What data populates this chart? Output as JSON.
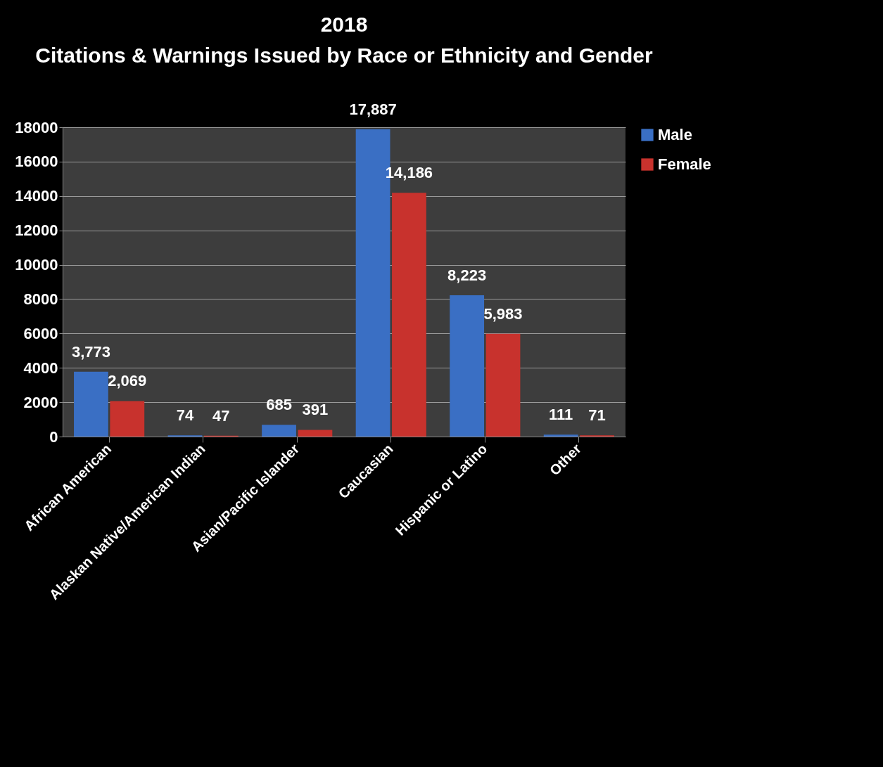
{
  "chart_data": {
    "type": "bar",
    "title": "2018",
    "subtitle": "Citations & Warnings Issued by Race or Ethnicity and Gender",
    "categories": [
      "African American",
      "Alaskan Native/American Indian",
      "Asian/Pacific Islander",
      "Caucasian",
      "Hispanic or Latino",
      "Other"
    ],
    "series": [
      {
        "name": "Male",
        "color": "#3a6fc4",
        "values": [
          3773,
          74,
          685,
          17887,
          8223,
          111
        ],
        "value_labels": [
          "3,773",
          "74",
          "685",
          "17,887",
          "8,223",
          "111"
        ]
      },
      {
        "name": "Female",
        "color": "#c8322d",
        "values": [
          2069,
          47,
          391,
          14186,
          5983,
          71
        ],
        "value_labels": [
          "2,069",
          "47",
          "391",
          "14,186",
          "5,983",
          "71"
        ]
      }
    ],
    "ylim": [
      0,
      18000
    ],
    "yticks": [
      0,
      2000,
      4000,
      6000,
      8000,
      10000,
      12000,
      14000,
      16000,
      18000
    ],
    "grid": "y",
    "legend": "right"
  }
}
